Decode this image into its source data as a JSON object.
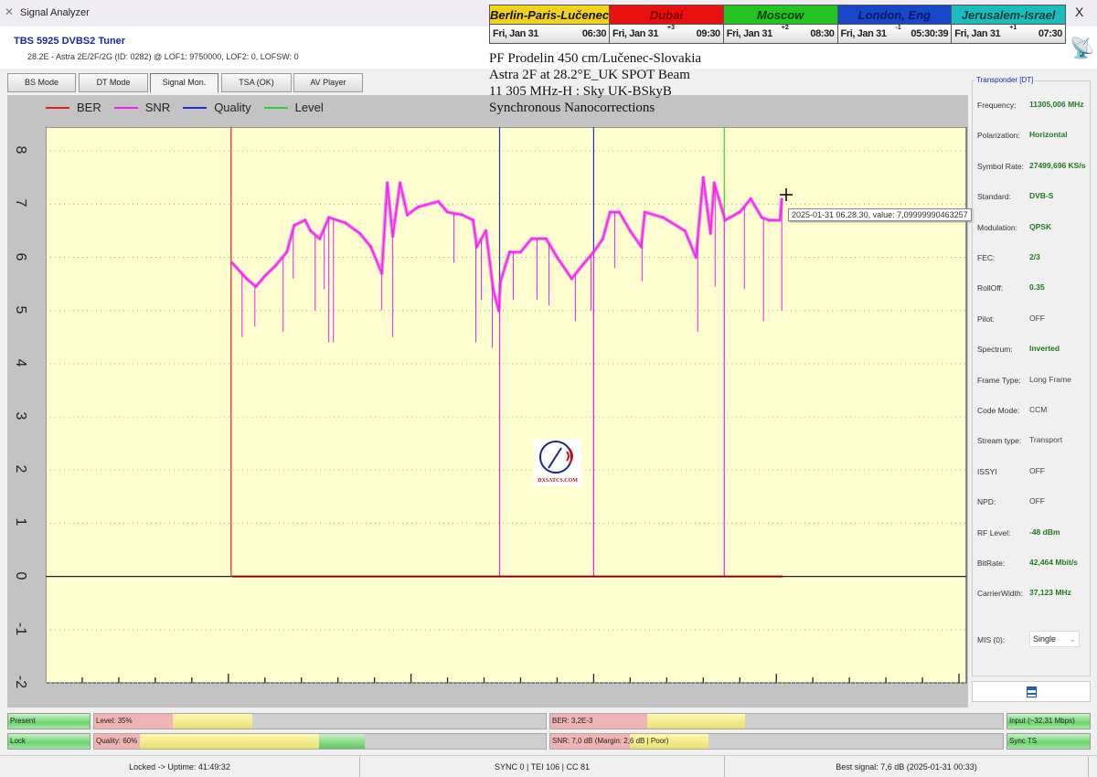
{
  "window": {
    "title": "Signal Analyzer",
    "close": "X"
  },
  "tuner": {
    "name": "TBS 5925 DVBS2 Tuner",
    "info": "28.2E - Astra 2E/2F/2G (ID: 0282) @ LOF1: 9750000, LOF2: 0, LOFSW: 0"
  },
  "clocks": [
    {
      "city": "Berlin-Paris-Lučenec",
      "date": "Fri, Jan 31",
      "offset": "",
      "time": "06:30",
      "color": "#f2d21a",
      "text": "#111"
    },
    {
      "city": "Dubai",
      "date": "Fri, Jan 31",
      "offset": "+3",
      "time": "09:30",
      "color": "#e81010",
      "text": "#7a0000"
    },
    {
      "city": "Moscow",
      "date": "Fri, Jan 31",
      "offset": "+2",
      "time": "08:30",
      "color": "#22c322",
      "text": "#063b06"
    },
    {
      "city": "London, Eng",
      "date": "Fri, Jan 31",
      "offset": "-1",
      "time": "05:30:39",
      "color": "#1848c8",
      "text": "#0a1660"
    },
    {
      "city": "Jerusalem-Israel",
      "date": "Fri, Jan 31",
      "offset": "+1",
      "time": "07:30",
      "color": "#1cbcbc",
      "text": "#0a3e3e"
    }
  ],
  "info_lines": [
    "PF Prodelin 450 cm/Lučenec-Slovakia",
    "Astra 2F at 28.2°E_UK SPOT Beam",
    "11 305 MHz-H : Sky UK-BSkyB",
    "Synchronous Nanocorrections"
  ],
  "tabs": [
    {
      "label": "BS Mode"
    },
    {
      "label": "DT Mode"
    },
    {
      "label": "Signal Mon.",
      "active": true
    },
    {
      "label": "TSA (OK)"
    },
    {
      "label": "AV Player"
    }
  ],
  "chart_data": {
    "type": "line",
    "legend": [
      "BER",
      "SNR",
      "Quality",
      "Level"
    ],
    "legend_position": "top-left",
    "colors": {
      "BER": "#e02020",
      "SNR": "#f020f0",
      "Quality": "#2030d0",
      "Level": "#30d030"
    },
    "ylim": [
      -2,
      8.45
    ],
    "xlim": [
      0,
      252
    ],
    "yticks": [
      "8",
      "7",
      "6",
      "5",
      "4",
      "3",
      "2",
      "1",
      "0",
      "-1",
      "-2"
    ],
    "grid": true,
    "background": "#ffffd0",
    "snr_trace": [
      [
        51,
        5.9
      ],
      [
        55,
        5.6
      ],
      [
        57.5,
        5.45
      ],
      [
        60,
        5.65
      ],
      [
        63,
        5.85
      ],
      [
        66,
        6.1
      ],
      [
        68,
        6.6
      ],
      [
        71,
        6.7
      ],
      [
        72.5,
        6.5
      ],
      [
        75,
        6.35
      ],
      [
        77.5,
        6.75
      ],
      [
        82,
        6.65
      ],
      [
        86,
        6.45
      ],
      [
        89,
        6.2
      ],
      [
        92,
        5.7
      ],
      [
        93.5,
        7.4
      ],
      [
        95,
        6.4
      ],
      [
        97,
        7.4
      ],
      [
        99,
        6.8
      ],
      [
        102,
        6.95
      ],
      [
        107.5,
        7.05
      ],
      [
        110,
        6.85
      ],
      [
        114,
        6.8
      ],
      [
        117,
        6.7
      ],
      [
        118,
        6.2
      ],
      [
        120.5,
        6.5
      ],
      [
        122.5,
        5.4
      ],
      [
        124,
        5.0
      ],
      [
        124.5,
        5.55
      ],
      [
        127,
        6.1
      ],
      [
        130,
        6.1
      ],
      [
        133,
        6.35
      ],
      [
        137,
        6.35
      ],
      [
        140,
        6.0
      ],
      [
        144,
        5.6
      ],
      [
        147.5,
        5.9
      ],
      [
        150,
        6.1
      ],
      [
        152.5,
        6.35
      ],
      [
        154.5,
        6.85
      ],
      [
        157,
        6.85
      ],
      [
        160,
        6.5
      ],
      [
        163,
        6.2
      ],
      [
        164,
        6.85
      ],
      [
        169,
        6.75
      ],
      [
        175,
        6.5
      ],
      [
        178,
        6.0
      ],
      [
        180,
        7.5
      ],
      [
        182,
        6.45
      ],
      [
        183,
        7.4
      ],
      [
        186,
        6.7
      ],
      [
        190,
        6.85
      ],
      [
        193,
        7.1
      ],
      [
        196,
        6.75
      ],
      [
        198,
        6.7
      ],
      [
        201,
        6.7
      ],
      [
        201.5,
        7.1
      ]
    ],
    "snr_dips": [
      [
        53.75,
        4.5
      ],
      [
        57.25,
        4.7
      ],
      [
        65,
        4.6
      ],
      [
        67.75,
        5.6
      ],
      [
        73.75,
        5.0
      ],
      [
        76.25,
        5.4
      ],
      [
        77.5,
        4.4
      ],
      [
        78.75,
        4.4
      ],
      [
        92,
        5.0
      ],
      [
        95,
        4.5
      ],
      [
        111.75,
        5.9
      ],
      [
        117.75,
        4.4
      ],
      [
        119.25,
        5.2
      ],
      [
        122.25,
        4.3
      ],
      [
        128,
        5.2
      ],
      [
        134.5,
        5.2
      ],
      [
        137.75,
        5.1
      ],
      [
        145,
        4.8
      ],
      [
        149.25,
        5.0
      ],
      [
        155.75,
        5.8
      ],
      [
        163.25,
        5.55
      ],
      [
        178.5,
        4.6
      ],
      [
        183.25,
        5.45
      ],
      [
        191.25,
        5.4
      ],
      [
        196.5,
        4.8
      ],
      [
        201.5,
        5.0
      ]
    ],
    "ber_value": 0,
    "markers": [
      {
        "series": "BER",
        "t": 50.75
      },
      {
        "series": "Quality",
        "t": 124.25
      },
      {
        "series": "Quality",
        "t": 150
      },
      {
        "series": "Level",
        "t": 185.75
      }
    ],
    "tooltip": "2025-01-31 06.28.30, value: 7,09999990463257"
  },
  "logo": "DXSATCS.COM",
  "transponder": {
    "title": "Transponder [DT]",
    "fields": [
      {
        "label": "Frequency:",
        "value": "11305,006 MHz",
        "hl": true
      },
      {
        "label": "Polarization:",
        "value": "Horizontal",
        "hl": true
      },
      {
        "label": "Symbol Rate:",
        "value": "27499,696 KS/s",
        "hl": true
      },
      {
        "label": "Standard:",
        "value": "DVB-S",
        "hl": true
      },
      {
        "label": "Modulation:",
        "value": "QPSK",
        "hl": true
      },
      {
        "label": "FEC:",
        "value": "2/3",
        "hl": true
      },
      {
        "label": "RollOff:",
        "value": "0.35",
        "hl": true
      },
      {
        "label": "Pilot:",
        "value": "OFF",
        "hl": false
      },
      {
        "label": "Spectrum:",
        "value": "Inverted",
        "hl": true
      },
      {
        "label": "Frame Type:",
        "value": "Long Frame",
        "hl": false
      },
      {
        "label": "Code Mode:",
        "value": "CCM",
        "hl": false
      },
      {
        "label": "Stream type:",
        "value": "Transport",
        "hl": false
      },
      {
        "label": "ISSYI",
        "value": "OFF",
        "hl": false
      },
      {
        "label": "NPD:",
        "value": "OFF",
        "hl": false
      },
      {
        "label": "RF Level:",
        "value": "-48 dBm",
        "hl": true
      },
      {
        "label": "BitRate:",
        "value": "42,464 Mbit/s",
        "hl": true
      },
      {
        "label": "CarrierWidth:",
        "value": "37,123 MHz",
        "hl": true
      }
    ],
    "mis_label": "MIS (0):",
    "mis_value": "Single"
  },
  "indicators": {
    "present": "Present",
    "lock": "Lock",
    "input": "Input (~32,31 Mbps)",
    "sync": "Sync TS",
    "level": {
      "label": "Level: 35%",
      "fill_pct": 35
    },
    "quality": {
      "label": "Quality: 60%",
      "fill_pct": 60
    },
    "ber": {
      "label": "BER: 3,2E-3",
      "fill_pct": 43
    },
    "snr": {
      "label": "SNR: 7,0 dB (Margin: 2,6 dB | Poor)",
      "fill_pct": 35
    }
  },
  "status": {
    "uptime": "Locked -> Uptime: 41:49:32",
    "sync": "SYNC 0 | TEI 106 | CC 81",
    "best": "Best signal: 7,6 dB (2025-01-31 00:33)"
  }
}
